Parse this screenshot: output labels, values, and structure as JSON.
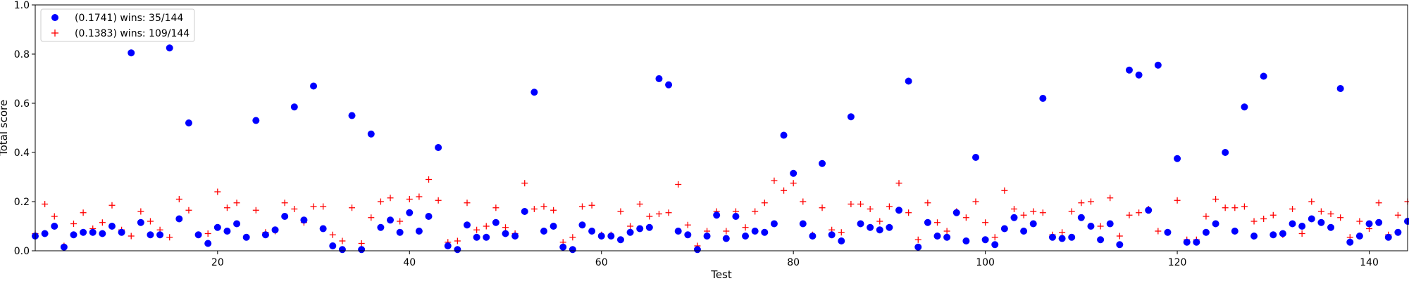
{
  "chart_data": {
    "type": "scatter",
    "title": "",
    "xlabel": "Test",
    "ylabel": "Total score",
    "xlim": [
      1,
      144
    ],
    "ylim": [
      0,
      1.0
    ],
    "xticks": [
      20,
      40,
      60,
      80,
      100,
      120,
      140
    ],
    "yticks": [
      0.0,
      0.2,
      0.4,
      0.6,
      0.8,
      1.0
    ],
    "ytick_labels": [
      "0.0",
      "0.2",
      "0.4",
      "0.6",
      "0.8",
      "1.0"
    ],
    "grid": false,
    "legend_position": "top-left",
    "series": [
      {
        "name": "(0.1741) wins: 35/144",
        "marker": "circle",
        "color": "#0000ff",
        "x": [
          1,
          2,
          3,
          4,
          5,
          6,
          7,
          8,
          9,
          10,
          11,
          12,
          13,
          14,
          15,
          16,
          17,
          18,
          19,
          20,
          21,
          22,
          23,
          24,
          25,
          26,
          27,
          28,
          29,
          30,
          31,
          32,
          33,
          34,
          35,
          36,
          37,
          38,
          39,
          40,
          41,
          42,
          43,
          44,
          45,
          46,
          47,
          48,
          49,
          50,
          51,
          52,
          53,
          54,
          55,
          56,
          57,
          58,
          59,
          60,
          61,
          62,
          63,
          64,
          65,
          66,
          67,
          68,
          69,
          70,
          71,
          72,
          73,
          74,
          75,
          76,
          77,
          78,
          79,
          80,
          81,
          82,
          83,
          84,
          85,
          86,
          87,
          88,
          89,
          90,
          91,
          92,
          93,
          94,
          95,
          96,
          97,
          98,
          99,
          100,
          101,
          102,
          103,
          104,
          105,
          106,
          107,
          108,
          109,
          110,
          111,
          112,
          113,
          114,
          115,
          116,
          117,
          118,
          119,
          120,
          121,
          122,
          123,
          124,
          125,
          126,
          127,
          128,
          129,
          130,
          131,
          132,
          133,
          134,
          135,
          136,
          137,
          138,
          139,
          140,
          141,
          142,
          143,
          144
        ],
        "y": [
          0.06,
          0.07,
          0.1,
          0.015,
          0.065,
          0.075,
          0.075,
          0.07,
          0.1,
          0.075,
          0.805,
          0.115,
          0.065,
          0.065,
          0.825,
          0.13,
          0.52,
          0.065,
          0.03,
          0.095,
          0.08,
          0.11,
          0.055,
          0.53,
          0.065,
          0.085,
          0.14,
          0.585,
          0.125,
          0.67,
          0.09,
          0.02,
          0.005,
          0.55,
          0.005,
          0.475,
          0.095,
          0.125,
          0.075,
          0.155,
          0.08,
          0.14,
          0.42,
          0.02,
          0.005,
          0.105,
          0.055,
          0.055,
          0.115,
          0.07,
          0.06,
          0.16,
          0.645,
          0.08,
          0.1,
          0.015,
          0.005,
          0.105,
          0.08,
          0.06,
          0.06,
          0.045,
          0.075,
          0.09,
          0.095,
          0.7,
          0.675,
          0.08,
          0.065,
          0.005,
          0.06,
          0.145,
          0.05,
          0.14,
          0.06,
          0.08,
          0.075,
          0.11,
          0.47,
          0.315,
          0.11,
          0.06,
          0.355,
          0.065,
          0.04,
          0.545,
          0.11,
          0.095,
          0.085,
          0.095,
          0.165,
          0.69,
          0.015,
          0.115,
          0.06,
          0.055,
          0.155,
          0.04,
          0.38,
          0.045,
          0.025,
          0.09,
          0.135,
          0.08,
          0.11,
          0.62,
          0.055,
          0.05,
          0.055,
          0.135,
          0.1,
          0.045,
          0.11,
          0.025,
          0.735,
          0.715,
          0.165,
          0.755,
          0.075,
          0.375,
          0.035,
          0.035,
          0.075,
          0.11,
          0.4,
          0.08,
          0.585,
          0.06,
          0.71,
          0.065,
          0.07,
          0.11,
          0.1,
          0.13,
          0.115,
          0.095,
          0.66,
          0.035,
          0.06,
          0.11,
          0.115,
          0.055,
          0.075,
          0.12
        ]
      },
      {
        "name": "(0.1383) wins: 109/144",
        "marker": "plus",
        "color": "#ff0000",
        "x": [
          1,
          2,
          3,
          4,
          5,
          6,
          7,
          8,
          9,
          10,
          11,
          12,
          13,
          14,
          15,
          16,
          17,
          18,
          19,
          20,
          21,
          22,
          23,
          24,
          25,
          26,
          27,
          28,
          29,
          30,
          31,
          32,
          33,
          34,
          35,
          36,
          37,
          38,
          39,
          40,
          41,
          42,
          43,
          44,
          45,
          46,
          47,
          48,
          49,
          50,
          51,
          52,
          53,
          54,
          55,
          56,
          57,
          58,
          59,
          60,
          61,
          62,
          63,
          64,
          65,
          66,
          67,
          68,
          69,
          70,
          71,
          72,
          73,
          74,
          75,
          76,
          77,
          78,
          79,
          80,
          81,
          82,
          83,
          84,
          85,
          86,
          87,
          88,
          89,
          90,
          91,
          92,
          93,
          94,
          95,
          96,
          97,
          98,
          99,
          100,
          101,
          102,
          103,
          104,
          105,
          106,
          107,
          108,
          109,
          110,
          111,
          112,
          113,
          114,
          115,
          116,
          117,
          118,
          119,
          120,
          121,
          122,
          123,
          124,
          125,
          126,
          127,
          128,
          129,
          130,
          131,
          132,
          133,
          134,
          135,
          136,
          137,
          138,
          139,
          140,
          141,
          142,
          143,
          144
        ],
        "y": [
          0.07,
          0.19,
          0.14,
          0.02,
          0.11,
          0.155,
          0.09,
          0.115,
          0.185,
          0.085,
          0.06,
          0.16,
          0.12,
          0.085,
          0.055,
          0.21,
          0.165,
          0.065,
          0.07,
          0.24,
          0.175,
          0.195,
          0.055,
          0.165,
          0.075,
          0.08,
          0.195,
          0.17,
          0.115,
          0.18,
          0.18,
          0.065,
          0.04,
          0.175,
          0.03,
          0.135,
          0.2,
          0.215,
          0.12,
          0.21,
          0.22,
          0.29,
          0.205,
          0.035,
          0.04,
          0.195,
          0.085,
          0.1,
          0.175,
          0.095,
          0.07,
          0.275,
          0.17,
          0.18,
          0.165,
          0.035,
          0.055,
          0.18,
          0.185,
          0.065,
          0.065,
          0.16,
          0.1,
          0.19,
          0.14,
          0.15,
          0.155,
          0.27,
          0.105,
          0.02,
          0.08,
          0.16,
          0.08,
          0.16,
          0.095,
          0.16,
          0.195,
          0.285,
          0.245,
          0.275,
          0.2,
          0.065,
          0.175,
          0.085,
          0.075,
          0.19,
          0.19,
          0.17,
          0.12,
          0.18,
          0.275,
          0.155,
          0.045,
          0.195,
          0.115,
          0.08,
          0.16,
          0.135,
          0.2,
          0.115,
          0.055,
          0.245,
          0.17,
          0.145,
          0.16,
          0.155,
          0.065,
          0.075,
          0.16,
          0.195,
          0.2,
          0.1,
          0.215,
          0.06,
          0.145,
          0.155,
          0.17,
          0.08,
          0.075,
          0.205,
          0.045,
          0.045,
          0.14,
          0.21,
          0.175,
          0.175,
          0.18,
          0.12,
          0.13,
          0.145,
          0.065,
          0.17,
          0.07,
          0.2,
          0.16,
          0.15,
          0.135,
          0.055,
          0.12,
          0.09,
          0.195,
          0.065,
          0.145,
          0.2
        ]
      }
    ]
  }
}
